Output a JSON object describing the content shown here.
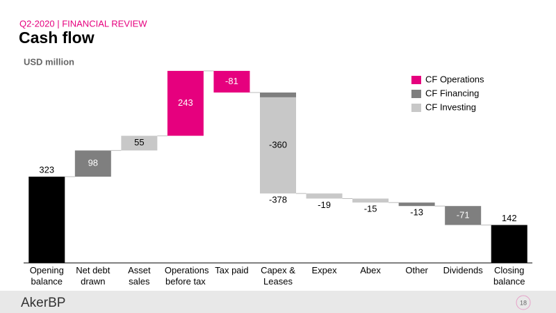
{
  "header": {
    "kicker": "Q2-2020 | FINANCIAL REVIEW",
    "title": "Cash flow",
    "unit": "USD million"
  },
  "chart_data": {
    "type": "waterfall",
    "categories": [
      "Opening balance",
      "Net debt drawn",
      "Asset sales",
      "Operations before tax",
      "Tax paid",
      "Capex & Leases",
      "Expex",
      "Abex",
      "Other",
      "Dividends",
      "Closing balance"
    ],
    "totals": {
      "color": "#000000",
      "values": [
        323,
        null,
        null,
        null,
        null,
        null,
        null,
        null,
        null,
        null,
        142
      ]
    },
    "series": [
      {
        "name": "CF Operations",
        "color": "#e6007e",
        "values": [
          null,
          null,
          null,
          243,
          -81,
          null,
          null,
          null,
          null,
          null,
          null
        ]
      },
      {
        "name": "CF Financing",
        "color": "#7f7f7f",
        "values": [
          null,
          98,
          null,
          null,
          null,
          -18,
          null,
          null,
          -13,
          -71,
          null
        ]
      },
      {
        "name": "CF Investing",
        "color": "#c8c8c8",
        "values": [
          null,
          null,
          55,
          null,
          null,
          -360,
          -19,
          -15,
          null,
          null,
          null
        ]
      }
    ],
    "annotations": [
      {
        "category": "Capex & Leases",
        "value": -378
      }
    ],
    "ylim": [
      0,
      750
    ]
  },
  "footer": {
    "logo": "AkerBP",
    "page": "18"
  }
}
